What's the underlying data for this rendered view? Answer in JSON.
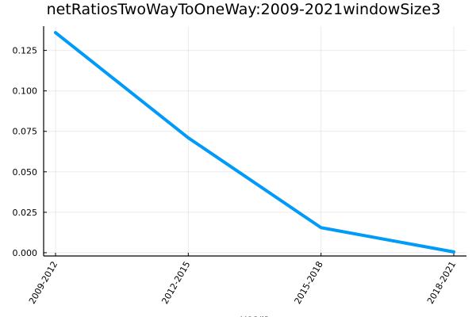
{
  "chart_data": {
    "type": "line",
    "title": "netRatiosTwoWayToOneWay:2009-2021windowSize3",
    "xlabel": "years",
    "ylabel": "",
    "categories": [
      "2009-2012",
      "2012-2015",
      "2015-2018",
      "2018-2021"
    ],
    "series": [
      {
        "values": [
          0.136,
          0.071,
          0.0155,
          0.0005
        ],
        "color": "#009AF9"
      }
    ],
    "yticks": [
      0.0,
      0.025,
      0.05,
      0.075,
      0.1,
      0.125
    ],
    "ytick_labels": [
      "0.000",
      "0.025",
      "0.050",
      "0.075",
      "0.100",
      "0.125"
    ],
    "ylim": [
      -0.002,
      0.14
    ],
    "grid": true,
    "legend": "none"
  }
}
